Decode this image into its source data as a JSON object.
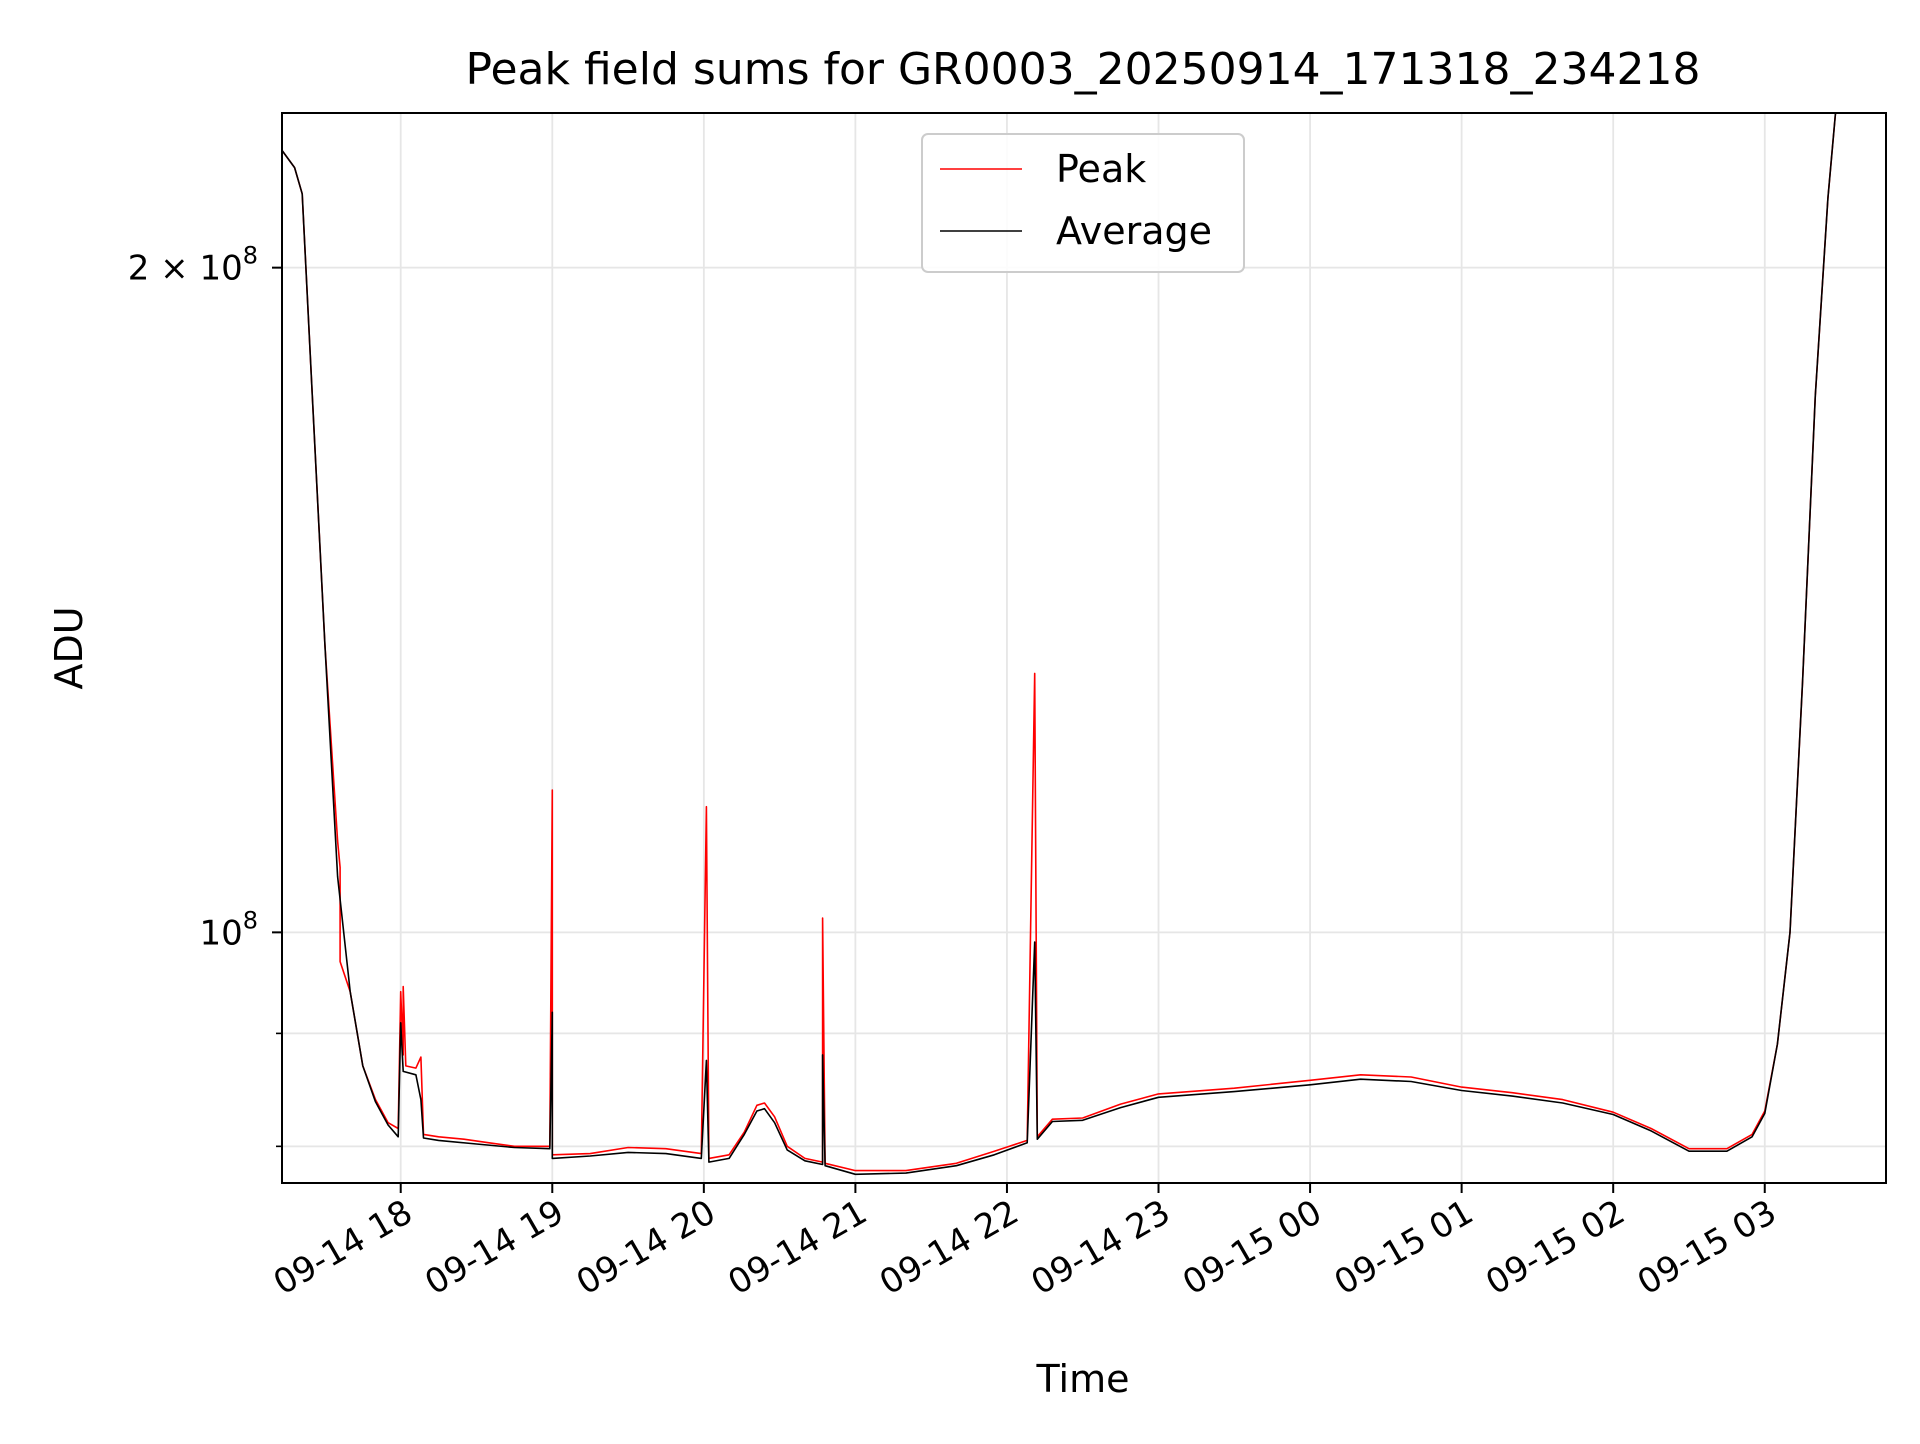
{
  "chart_data": {
    "type": "line",
    "title": "Peak field sums for GR0003_20250914_171318_234218",
    "xlabel": "Time",
    "ylabel": "ADU",
    "yscale": "log",
    "xlim": [
      "2025-09-14 17:13",
      "2025-09-15 03:48"
    ],
    "ylim": [
      77000000,
      235000000
    ],
    "grid": true,
    "legend": "upper center",
    "x_ticks": [
      {
        "value": "2025-09-14 18:00",
        "label": "09-14 18"
      },
      {
        "value": "2025-09-14 19:00",
        "label": "09-14 19"
      },
      {
        "value": "2025-09-14 20:00",
        "label": "09-14 20"
      },
      {
        "value": "2025-09-14 21:00",
        "label": "09-14 21"
      },
      {
        "value": "2025-09-14 22:00",
        "label": "09-14 22"
      },
      {
        "value": "2025-09-14 23:00",
        "label": "09-14 23"
      },
      {
        "value": "2025-09-15 00:00",
        "label": "09-15 00"
      },
      {
        "value": "2025-09-15 01:00",
        "label": "09-15 01"
      },
      {
        "value": "2025-09-15 02:00",
        "label": "09-15 02"
      },
      {
        "value": "2025-09-15 03:00",
        "label": "09-15 03"
      }
    ],
    "y_major_ticks": [
      {
        "value": 100000000,
        "label": "10",
        "exp": "8"
      },
      {
        "value": 200000000,
        "label": "2 × 10",
        "exp": "8"
      }
    ],
    "y_minor_ticks": [
      80000000,
      90000000
    ],
    "series": [
      {
        "name": "Peak",
        "color": "#ff0000",
        "points": [
          [
            "2025-09-14 17:13",
            226000000
          ],
          [
            "2025-09-14 17:18",
            222000000
          ],
          [
            "2025-09-14 17:21",
            216000000
          ],
          [
            "2025-09-14 17:25",
            175000000
          ],
          [
            "2025-09-14 17:30",
            135000000
          ],
          [
            "2025-09-14 17:35",
            110000000
          ],
          [
            "2025-09-14 17:36",
            107000000
          ],
          [
            "2025-09-14 17:36",
            97000000
          ],
          [
            "2025-09-14 17:40",
            94000000
          ],
          [
            "2025-09-14 17:45",
            87000000
          ],
          [
            "2025-09-14 17:50",
            84000000
          ],
          [
            "2025-09-14 17:55",
            82000000
          ],
          [
            "2025-09-14 17:59",
            81500000
          ],
          [
            "2025-09-14 18:00",
            94000000
          ],
          [
            "2025-09-14 18:01",
            88000000
          ],
          [
            "2025-09-14 18:01",
            94500000
          ],
          [
            "2025-09-14 18:02",
            87000000
          ],
          [
            "2025-09-14 18:06",
            86800000
          ],
          [
            "2025-09-14 18:08",
            87800000
          ],
          [
            "2025-09-14 18:09",
            81000000
          ],
          [
            "2025-09-14 18:15",
            80800000
          ],
          [
            "2025-09-14 18:25",
            80600000
          ],
          [
            "2025-09-14 18:35",
            80300000
          ],
          [
            "2025-09-14 18:45",
            80000000
          ],
          [
            "2025-09-14 18:59",
            80000000
          ],
          [
            "2025-09-14 19:00",
            116000000
          ],
          [
            "2025-09-14 19:00",
            79300000
          ],
          [
            "2025-09-14 19:15",
            79400000
          ],
          [
            "2025-09-14 19:30",
            79900000
          ],
          [
            "2025-09-14 19:45",
            79800000
          ],
          [
            "2025-09-14 19:59",
            79400000
          ],
          [
            "2025-09-14 20:01",
            114000000
          ],
          [
            "2025-09-14 20:02",
            79000000
          ],
          [
            "2025-09-14 20:10",
            79300000
          ],
          [
            "2025-09-14 20:16",
            81200000
          ],
          [
            "2025-09-14 20:21",
            83500000
          ],
          [
            "2025-09-14 20:24",
            83700000
          ],
          [
            "2025-09-14 20:28",
            82500000
          ],
          [
            "2025-09-14 20:33",
            80000000
          ],
          [
            "2025-09-14 20:40",
            79000000
          ],
          [
            "2025-09-14 20:47",
            78700000
          ],
          [
            "2025-09-14 20:47",
            101500000
          ],
          [
            "2025-09-14 20:48",
            78600000
          ],
          [
            "2025-09-14 21:00",
            78000000
          ],
          [
            "2025-09-14 21:20",
            78000000
          ],
          [
            "2025-09-14 21:40",
            78600000
          ],
          [
            "2025-09-14 21:55",
            79600000
          ],
          [
            "2025-09-14 22:08",
            80500000
          ],
          [
            "2025-09-14 22:11",
            131000000
          ],
          [
            "2025-09-14 22:12",
            80800000
          ],
          [
            "2025-09-14 22:18",
            82300000
          ],
          [
            "2025-09-14 22:30",
            82400000
          ],
          [
            "2025-09-14 22:45",
            83600000
          ],
          [
            "2025-09-14 23:00",
            84500000
          ],
          [
            "2025-09-14 23:30",
            85000000
          ],
          [
            "2025-09-15 00:00",
            85700000
          ],
          [
            "2025-09-15 00:20",
            86200000
          ],
          [
            "2025-09-15 00:40",
            86000000
          ],
          [
            "2025-09-15 01:00",
            85100000
          ],
          [
            "2025-09-15 01:20",
            84600000
          ],
          [
            "2025-09-15 01:40",
            84000000
          ],
          [
            "2025-09-15 02:00",
            82900000
          ],
          [
            "2025-09-15 02:15",
            81500000
          ],
          [
            "2025-09-15 02:30",
            79800000
          ],
          [
            "2025-09-15 02:45",
            79800000
          ],
          [
            "2025-09-15 02:55",
            81000000
          ],
          [
            "2025-09-15 03:00",
            83000000
          ],
          [
            "2025-09-15 03:05",
            89000000
          ],
          [
            "2025-09-15 03:10",
            100000000
          ],
          [
            "2025-09-15 03:15",
            130000000
          ],
          [
            "2025-09-15 03:20",
            175000000
          ],
          [
            "2025-09-15 03:25",
            215000000
          ],
          [
            "2025-09-15 03:28",
            235000000
          ]
        ]
      },
      {
        "name": "Average",
        "color": "#000000",
        "points": [
          [
            "2025-09-14 17:13",
            226000000
          ],
          [
            "2025-09-14 17:18",
            222000000
          ],
          [
            "2025-09-14 17:21",
            216000000
          ],
          [
            "2025-09-14 17:25",
            175000000
          ],
          [
            "2025-09-14 17:30",
            135000000
          ],
          [
            "2025-09-14 17:35",
            106000000
          ],
          [
            "2025-09-14 17:40",
            94000000
          ],
          [
            "2025-09-14 17:45",
            87000000
          ],
          [
            "2025-09-14 17:50",
            83800000
          ],
          [
            "2025-09-14 17:55",
            81800000
          ],
          [
            "2025-09-14 17:59",
            80800000
          ],
          [
            "2025-09-14 18:00",
            91000000
          ],
          [
            "2025-09-14 18:01",
            86500000
          ],
          [
            "2025-09-14 18:06",
            86200000
          ],
          [
            "2025-09-14 18:08",
            84000000
          ],
          [
            "2025-09-14 18:09",
            80700000
          ],
          [
            "2025-09-14 18:15",
            80500000
          ],
          [
            "2025-09-14 18:30",
            80200000
          ],
          [
            "2025-09-14 18:45",
            79900000
          ],
          [
            "2025-09-14 18:59",
            79800000
          ],
          [
            "2025-09-14 19:00",
            92000000
          ],
          [
            "2025-09-14 19:00",
            79000000
          ],
          [
            "2025-09-14 19:15",
            79200000
          ],
          [
            "2025-09-14 19:30",
            79500000
          ],
          [
            "2025-09-14 19:45",
            79400000
          ],
          [
            "2025-09-14 19:59",
            79000000
          ],
          [
            "2025-09-14 20:01",
            87500000
          ],
          [
            "2025-09-14 20:02",
            78700000
          ],
          [
            "2025-09-14 20:10",
            79000000
          ],
          [
            "2025-09-14 20:16",
            81000000
          ],
          [
            "2025-09-14 20:21",
            83000000
          ],
          [
            "2025-09-14 20:24",
            83200000
          ],
          [
            "2025-09-14 20:28",
            82000000
          ],
          [
            "2025-09-14 20:33",
            79700000
          ],
          [
            "2025-09-14 20:40",
            78800000
          ],
          [
            "2025-09-14 20:47",
            78500000
          ],
          [
            "2025-09-14 20:47",
            88000000
          ],
          [
            "2025-09-14 20:48",
            78400000
          ],
          [
            "2025-09-14 21:00",
            77700000
          ],
          [
            "2025-09-14 21:20",
            77800000
          ],
          [
            "2025-09-14 21:40",
            78400000
          ],
          [
            "2025-09-14 21:55",
            79300000
          ],
          [
            "2025-09-14 22:08",
            80300000
          ],
          [
            "2025-09-14 22:11",
            99000000
          ],
          [
            "2025-09-14 22:12",
            80600000
          ],
          [
            "2025-09-14 22:18",
            82100000
          ],
          [
            "2025-09-14 22:30",
            82200000
          ],
          [
            "2025-09-14 22:45",
            83300000
          ],
          [
            "2025-09-14 23:00",
            84200000
          ],
          [
            "2025-09-14 23:30",
            84700000
          ],
          [
            "2025-09-15 00:00",
            85300000
          ],
          [
            "2025-09-15 00:20",
            85800000
          ],
          [
            "2025-09-15 00:40",
            85600000
          ],
          [
            "2025-09-15 01:00",
            84800000
          ],
          [
            "2025-09-15 01:20",
            84300000
          ],
          [
            "2025-09-15 01:40",
            83700000
          ],
          [
            "2025-09-15 02:00",
            82700000
          ],
          [
            "2025-09-15 02:15",
            81300000
          ],
          [
            "2025-09-15 02:30",
            79600000
          ],
          [
            "2025-09-15 02:45",
            79600000
          ],
          [
            "2025-09-15 02:55",
            80800000
          ],
          [
            "2025-09-15 03:00",
            82800000
          ],
          [
            "2025-09-15 03:05",
            89000000
          ],
          [
            "2025-09-15 03:10",
            100000000
          ],
          [
            "2025-09-15 03:15",
            130000000
          ],
          [
            "2025-09-15 03:20",
            175000000
          ],
          [
            "2025-09-15 03:25",
            215000000
          ],
          [
            "2025-09-15 03:28",
            235000000
          ]
        ]
      }
    ]
  }
}
